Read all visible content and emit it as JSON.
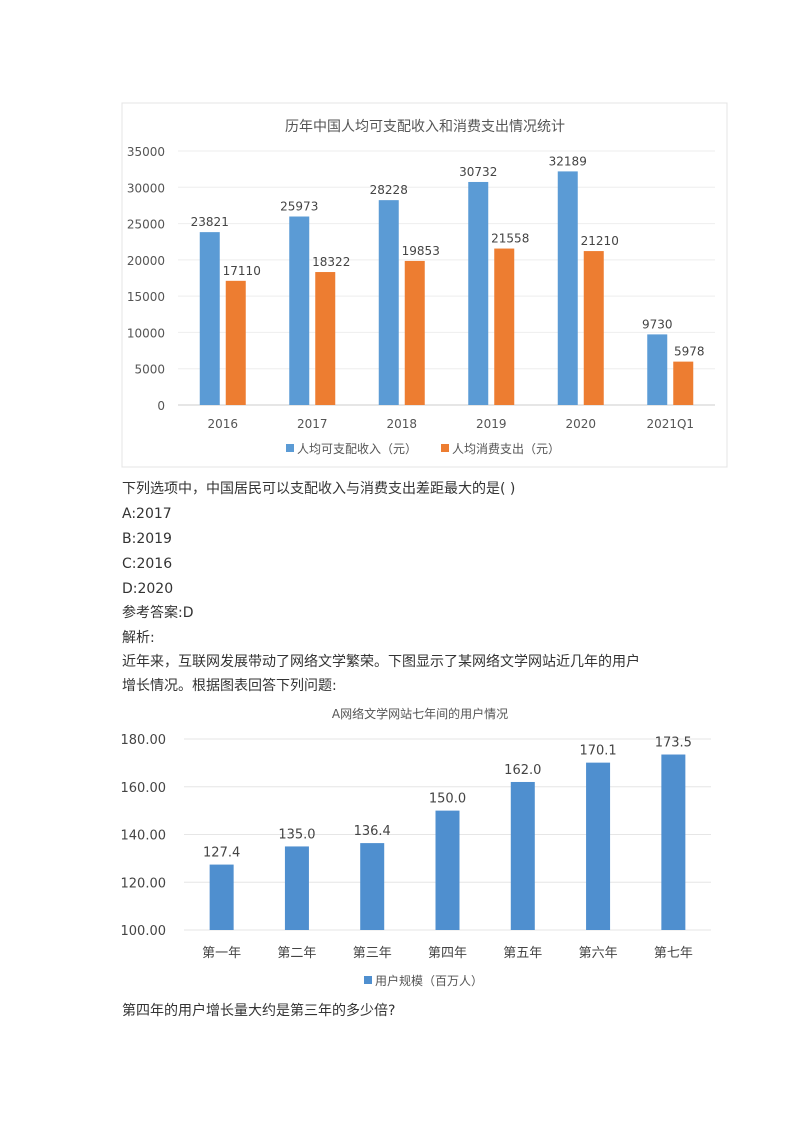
{
  "question1": {
    "stem": "下列选项中，中国居民可以支配收入与消费支出差距最大的是( )",
    "options": [
      "A:2017",
      "B:2019",
      "C:2016",
      "D:2020"
    ],
    "answer": "参考答案:D",
    "analysis_label": "解析:"
  },
  "passage": {
    "line1": "近年来，互联网发展带动了网络文学繁荣。下图显示了某网络文学网站近几年的用户",
    "line2": "增长情况。根据图表回答下列问题:"
  },
  "question2": {
    "stem": "第四年的用户增长量大约是第三年的多少倍?"
  },
  "chart_data": [
    {
      "type": "bar",
      "title": "历年中国人均可支配收入和消费支出情况统计",
      "categories": [
        "2016",
        "2017",
        "2018",
        "2019",
        "2020",
        "2021Q1"
      ],
      "series": [
        {
          "name": "人均可支配收入（元）",
          "color": "#5b9bd5",
          "values": [
            23821,
            25973,
            28228,
            30732,
            32189,
            9730
          ]
        },
        {
          "name": "人均消费支出（元）",
          "color": "#ed7d31",
          "values": [
            17110,
            18322,
            19853,
            21558,
            21210,
            5978
          ]
        }
      ],
      "ylim": [
        0,
        35000
      ],
      "yticks": [
        "0",
        "5000",
        "10000",
        "15000",
        "20000",
        "25000",
        "30000",
        "35000"
      ],
      "grid": true,
      "legend": "bottom"
    },
    {
      "type": "bar",
      "title": "A网络文学网站七年间的用户情况",
      "categories": [
        "第一年",
        "第二年",
        "第三年",
        "第四年",
        "第五年",
        "第六年",
        "第七年"
      ],
      "series": [
        {
          "name": "用户规模（百万人）",
          "color": "#4f8fcf",
          "values": [
            127.4,
            135.0,
            136.4,
            150.0,
            162.0,
            170.1,
            173.5
          ],
          "labels": [
            "127.4",
            "135.0",
            "136.4",
            "150.0",
            "162.0",
            "170.1",
            "173.5"
          ]
        }
      ],
      "ylim": [
        100,
        180
      ],
      "yticks": [
        "100.00",
        "120.00",
        "140.00",
        "160.00",
        "180.00"
      ],
      "grid": true,
      "legend": "bottom"
    }
  ]
}
